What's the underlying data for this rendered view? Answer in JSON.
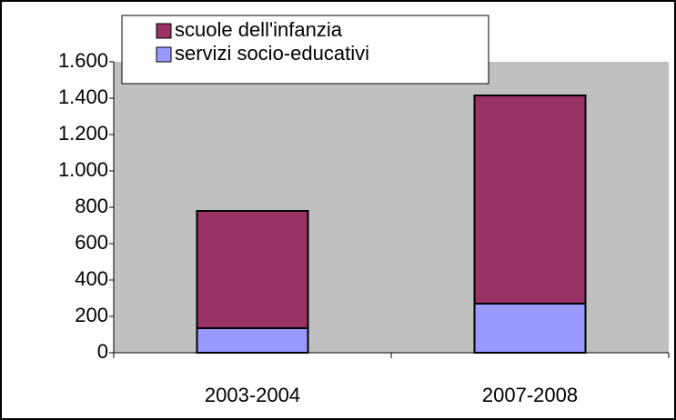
{
  "chart_data": {
    "type": "stacked_bar",
    "categories": [
      "2003-2004",
      "2007-2008"
    ],
    "series": [
      {
        "name": "servizi socio-educativi",
        "color": "#9999ff",
        "values": [
          135,
          270
        ]
      },
      {
        "name": "scuole dell'infanzia",
        "color": "#993366",
        "values": [
          645,
          1145
        ]
      }
    ],
    "ylim": [
      0,
      1600
    ],
    "yticks": [
      0,
      200,
      400,
      600,
      800,
      {
        "value": 1000,
        "label": "1.000"
      },
      {
        "value": 1200,
        "label": "1.200"
      },
      {
        "value": 1400,
        "label": "1.400"
      },
      {
        "value": 1600,
        "label": "1.600"
      }
    ],
    "grid": false,
    "legend": "top"
  }
}
